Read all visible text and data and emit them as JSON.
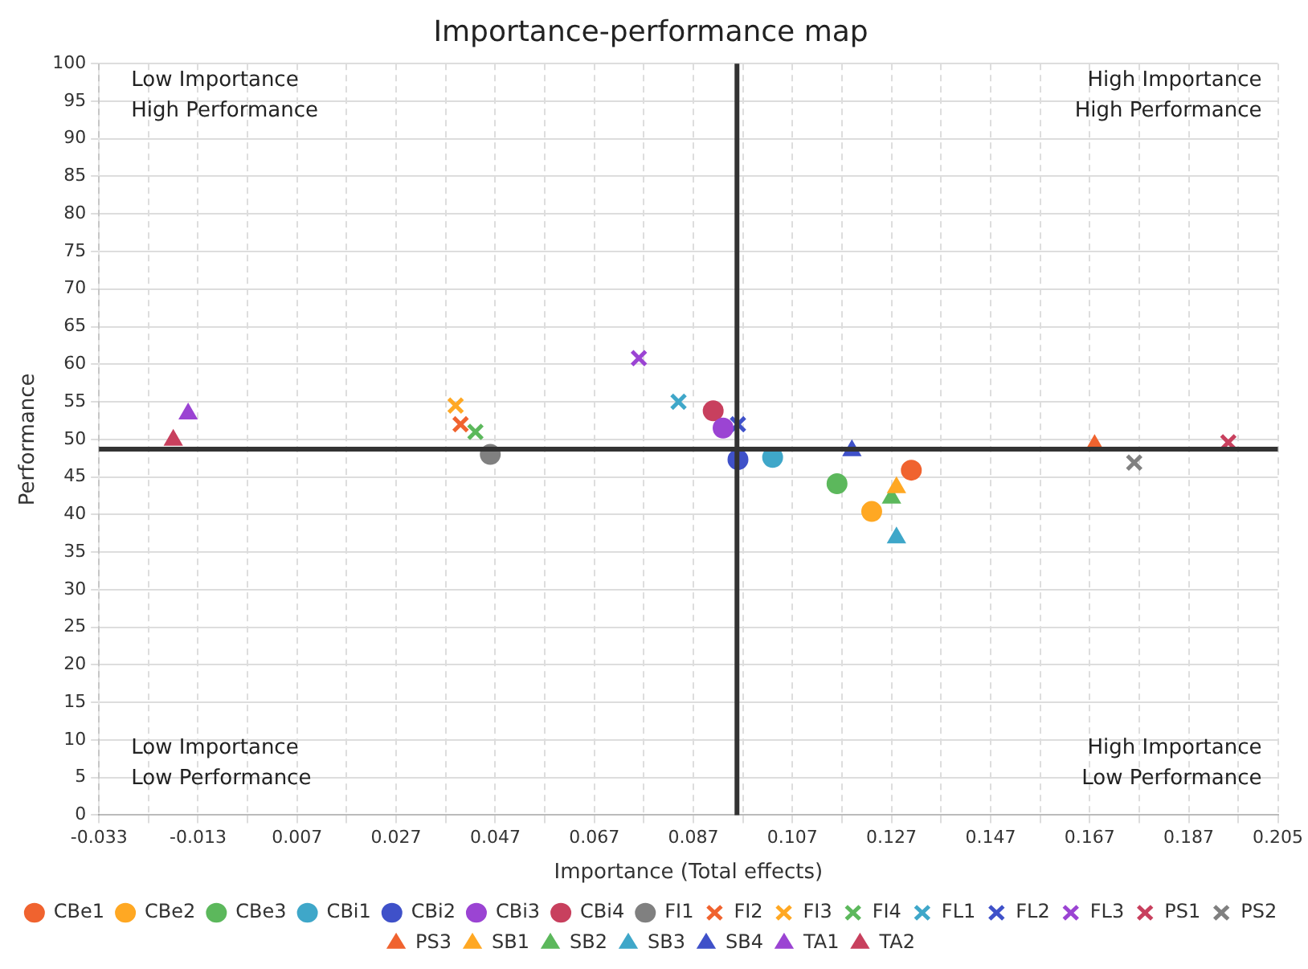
{
  "chart_data": {
    "type": "scatter",
    "title": "Importance-performance map",
    "xlabel": "Importance (Total effects)",
    "ylabel": "Performance",
    "xlim": [
      -0.033,
      0.205
    ],
    "ylim": [
      0,
      100
    ],
    "xticks": [
      -0.033,
      {
        "value": -0.023,
        "label": null
      },
      -0.013,
      {
        "value": -0.003,
        "label": null
      },
      0.007,
      {
        "value": 0.017,
        "label": null
      },
      0.027,
      {
        "value": 0.037,
        "label": null
      },
      0.047,
      {
        "value": 0.057,
        "label": null
      },
      0.067,
      {
        "value": 0.077,
        "label": null
      },
      0.087,
      {
        "value": 0.097,
        "label": null
      },
      0.107,
      {
        "value": 0.117,
        "label": null
      },
      0.127,
      {
        "value": 0.137,
        "label": null
      },
      0.147,
      {
        "value": 0.157,
        "label": null
      },
      0.167,
      {
        "value": 0.177,
        "label": null
      },
      0.187,
      {
        "value": 0.197,
        "label": null
      },
      0.205
    ],
    "yticks": [
      0,
      5,
      10,
      15,
      20,
      25,
      30,
      35,
      40,
      45,
      50,
      55,
      60,
      65,
      70,
      75,
      80,
      85,
      90,
      95,
      100
    ],
    "grid": true,
    "legend": "bottom",
    "ref_lines": [
      {
        "axis": "x",
        "value": 0.0958,
        "color": "#333333"
      },
      {
        "axis": "y",
        "value": 48.7,
        "color": "#333333"
      }
    ],
    "annotations": [
      "Low Importance\nHigh Performance",
      "High Importance\nHigh Performance",
      "Low Importance\nLow Performance",
      "High Importance\nLow Performance"
    ],
    "series": [
      {
        "name": "CBe1",
        "color": "#f0632f",
        "marker": "circle",
        "x": [
          0.131
        ],
        "values": [
          45.9
        ]
      },
      {
        "name": "CBe2",
        "color": "#ffa823",
        "marker": "circle",
        "x": [
          0.123
        ],
        "values": [
          40.4
        ]
      },
      {
        "name": "CBe3",
        "color": "#5cb85c",
        "marker": "circle",
        "x": [
          0.116
        ],
        "values": [
          44.1
        ]
      },
      {
        "name": "CBi1",
        "color": "#3fa7c9",
        "marker": "circle",
        "x": [
          0.103
        ],
        "values": [
          47.6
        ]
      },
      {
        "name": "CBi2",
        "color": "#3f51c9",
        "marker": "circle",
        "x": [
          0.096
        ],
        "values": [
          47.3
        ]
      },
      {
        "name": "CBi3",
        "color": "#9b44d3",
        "marker": "circle",
        "x": [
          0.093
        ],
        "values": [
          51.5
        ]
      },
      {
        "name": "CBi4",
        "color": "#c8405e",
        "marker": "circle",
        "x": [
          0.091
        ],
        "values": [
          53.8
        ]
      },
      {
        "name": "FI1",
        "color": "#808080",
        "marker": "circle",
        "x": [
          0.046
        ],
        "values": [
          48.0
        ]
      },
      {
        "name": "FI2",
        "color": "#f0632f",
        "marker": "cross",
        "x": [
          0.04
        ],
        "values": [
          52.0
        ]
      },
      {
        "name": "FI3",
        "color": "#ffa823",
        "marker": "cross",
        "x": [
          0.039
        ],
        "values": [
          54.5
        ]
      },
      {
        "name": "FI4",
        "color": "#5cb85c",
        "marker": "cross",
        "x": [
          0.043
        ],
        "values": [
          51.0
        ]
      },
      {
        "name": "FL1",
        "color": "#3fa7c9",
        "marker": "cross",
        "x": [
          0.084
        ],
        "values": [
          55.0
        ]
      },
      {
        "name": "FL2",
        "color": "#3f51c9",
        "marker": "cross",
        "x": [
          0.096
        ],
        "values": [
          52.0
        ]
      },
      {
        "name": "FL3",
        "color": "#9b44d3",
        "marker": "cross",
        "x": [
          0.076
        ],
        "values": [
          60.8
        ]
      },
      {
        "name": "PS1",
        "color": "#c8405e",
        "marker": "cross",
        "x": [
          0.195
        ],
        "values": [
          49.6
        ]
      },
      {
        "name": "PS2",
        "color": "#808080",
        "marker": "cross",
        "x": [
          0.176
        ],
        "values": [
          46.9
        ]
      },
      {
        "name": "PS3",
        "color": "#f0632f",
        "marker": "triangle",
        "x": [
          0.168
        ],
        "values": [
          49.2
        ]
      },
      {
        "name": "SB1",
        "color": "#ffa823",
        "marker": "triangle",
        "x": [
          0.128
        ],
        "values": [
          43.6
        ]
      },
      {
        "name": "SB2",
        "color": "#5cb85c",
        "marker": "triangle",
        "x": [
          0.127
        ],
        "values": [
          42.2
        ]
      },
      {
        "name": "SB3",
        "color": "#3fa7c9",
        "marker": "triangle",
        "x": [
          0.128
        ],
        "values": [
          36.9
        ]
      },
      {
        "name": "SB4",
        "color": "#3f51c9",
        "marker": "triangle",
        "x": [
          0.119
        ],
        "values": [
          48.5
        ]
      },
      {
        "name": "TA1",
        "color": "#9b44d3",
        "marker": "triangle",
        "x": [
          -0.015
        ],
        "values": [
          53.4
        ]
      },
      {
        "name": "TA2",
        "color": "#c8405e",
        "marker": "triangle",
        "x": [
          -0.018
        ],
        "values": [
          49.9
        ]
      }
    ]
  }
}
